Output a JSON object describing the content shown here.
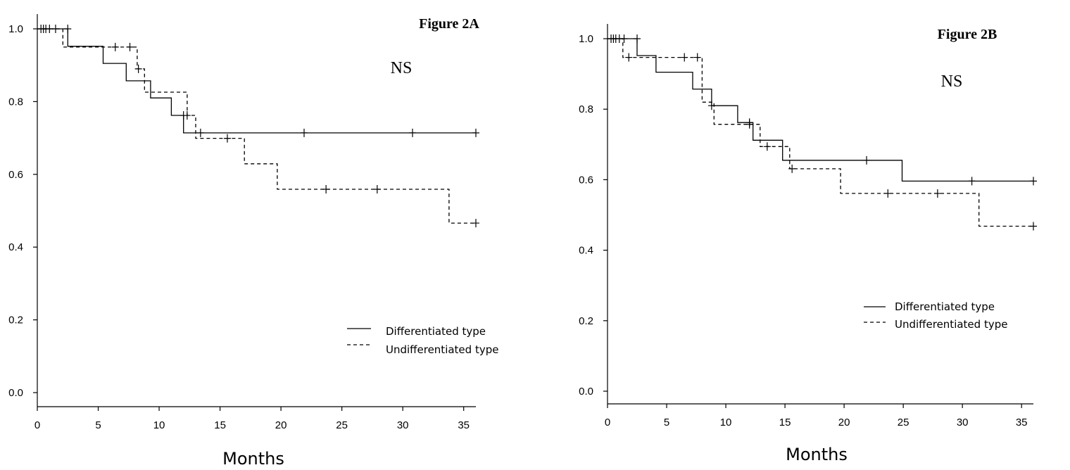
{
  "chart_data": [
    {
      "type": "line",
      "title": "Figure 2A",
      "annotation": "NS",
      "xlabel": "Months",
      "ylabel": "",
      "xlim": [
        0,
        36
      ],
      "ylim": [
        0,
        1.0
      ],
      "x_ticks": [
        "0",
        "5",
        "10",
        "15",
        "20",
        "25",
        "30",
        "35"
      ],
      "y_ticks": [
        "0.0",
        "0.2",
        "0.4",
        "0.6",
        "0.8",
        "1.0"
      ],
      "grid": false,
      "legend_position": "bottom-right",
      "series": [
        {
          "name": "Differentiated type",
          "style": "solid",
          "steps": [
            [
              0,
              1.0
            ],
            [
              2.5,
              0.952
            ],
            [
              5.4,
              0.905
            ],
            [
              7.3,
              0.857
            ],
            [
              9.3,
              0.81
            ],
            [
              11.0,
              0.762
            ],
            [
              12.0,
              0.714
            ],
            [
              36.0,
              0.714
            ]
          ],
          "censored": [
            [
              0.3,
              1.0
            ],
            [
              0.5,
              1.0
            ],
            [
              0.7,
              1.0
            ],
            [
              1.0,
              1.0
            ],
            [
              1.5,
              1.0
            ],
            [
              2.5,
              1.0
            ],
            [
              12.0,
              0.762
            ],
            [
              13.4,
              0.714
            ],
            [
              21.9,
              0.714
            ],
            [
              30.8,
              0.714
            ],
            [
              36.0,
              0.714
            ]
          ]
        },
        {
          "name": "Undifferentiated type",
          "style": "dashed",
          "steps": [
            [
              0,
              1.0
            ],
            [
              2.1,
              0.95
            ],
            [
              8.2,
              0.89
            ],
            [
              8.8,
              0.826
            ],
            [
              12.3,
              0.762
            ],
            [
              13.0,
              0.699
            ],
            [
              17.0,
              0.629
            ],
            [
              19.7,
              0.559
            ],
            [
              33.8,
              0.466
            ],
            [
              36.0,
              0.466
            ]
          ],
          "censored": [
            [
              6.4,
              0.95
            ],
            [
              7.6,
              0.95
            ],
            [
              8.3,
              0.89
            ],
            [
              12.3,
              0.762
            ],
            [
              15.6,
              0.699
            ],
            [
              23.7,
              0.559
            ],
            [
              27.9,
              0.559
            ],
            [
              36.0,
              0.466
            ]
          ]
        }
      ]
    },
    {
      "type": "line",
      "title": "Figure 2B",
      "annotation": "NS",
      "xlabel": "Months",
      "ylabel": "",
      "xlim": [
        0,
        36
      ],
      "ylim": [
        0,
        1.0
      ],
      "x_ticks": [
        "0",
        "5",
        "10",
        "15",
        "20",
        "25",
        "30",
        "35"
      ],
      "y_ticks": [
        "0.0",
        "0.2",
        "0.4",
        "0.6",
        "0.8",
        "1.0"
      ],
      "grid": false,
      "legend_position": "right",
      "series": [
        {
          "name": "Differentiated type",
          "style": "solid",
          "steps": [
            [
              0,
              1.0
            ],
            [
              2.5,
              0.952
            ],
            [
              4.1,
              0.905
            ],
            [
              7.2,
              0.857
            ],
            [
              8.8,
              0.81
            ],
            [
              11.0,
              0.762
            ],
            [
              12.3,
              0.712
            ],
            [
              14.8,
              0.655
            ],
            [
              24.9,
              0.596
            ],
            [
              36.0,
              0.596
            ]
          ],
          "censored": [
            [
              0.3,
              1.0
            ],
            [
              0.5,
              1.0
            ],
            [
              0.7,
              1.0
            ],
            [
              1.0,
              1.0
            ],
            [
              1.4,
              1.0
            ],
            [
              2.5,
              1.0
            ],
            [
              8.8,
              0.81
            ],
            [
              12.0,
              0.762
            ],
            [
              21.9,
              0.655
            ],
            [
              30.8,
              0.596
            ],
            [
              36.0,
              0.596
            ]
          ]
        },
        {
          "name": "Undifferentiated type",
          "style": "dashed",
          "steps": [
            [
              0,
              1.0
            ],
            [
              1.3,
              0.947
            ],
            [
              8.0,
              0.82
            ],
            [
              9.0,
              0.757
            ],
            [
              12.9,
              0.694
            ],
            [
              15.4,
              0.631
            ],
            [
              19.7,
              0.561
            ],
            [
              31.4,
              0.468
            ],
            [
              36.0,
              0.468
            ]
          ],
          "censored": [
            [
              1.8,
              0.947
            ],
            [
              6.5,
              0.947
            ],
            [
              7.6,
              0.947
            ],
            [
              12.0,
              0.757
            ],
            [
              13.5,
              0.694
            ],
            [
              15.6,
              0.631
            ],
            [
              23.7,
              0.561
            ],
            [
              27.9,
              0.561
            ],
            [
              36.0,
              0.468
            ]
          ]
        }
      ]
    }
  ]
}
